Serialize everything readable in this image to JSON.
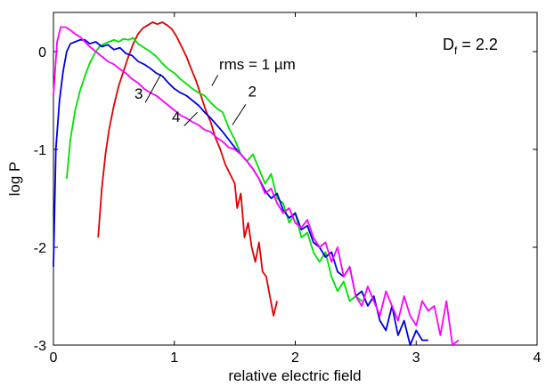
{
  "chart_data": {
    "type": "line",
    "xlabel": "relative electric field",
    "ylabel": "log P",
    "xlim": [
      0,
      4
    ],
    "ylim": [
      -3,
      0.4
    ],
    "xticks": [
      0,
      1,
      2,
      3,
      4
    ],
    "yticks": [
      -3,
      -2,
      -1,
      0
    ],
    "xtick_labels": [
      "0",
      "1",
      "2",
      "3",
      "4"
    ],
    "ytick_labels": [
      "-3",
      "-2",
      "-1",
      "0"
    ],
    "grid": false,
    "inset_text": {
      "main": "D",
      "sub": "f",
      "rest": " = 2.2"
    },
    "series": [
      {
        "name": "rms = 1 µm",
        "color": "#e00000",
        "x": [
          0.37,
          0.4,
          0.43,
          0.46,
          0.5,
          0.54,
          0.58,
          0.62,
          0.66,
          0.7,
          0.74,
          0.78,
          0.82,
          0.86,
          0.9,
          0.94,
          0.98,
          1.02,
          1.06,
          1.1,
          1.14,
          1.18,
          1.22,
          1.26,
          1.3,
          1.34,
          1.38,
          1.42,
          1.46,
          1.5,
          1.52,
          1.55,
          1.58,
          1.61,
          1.64,
          1.67,
          1.7,
          1.73,
          1.76,
          1.79,
          1.82,
          1.85
        ],
        "y": [
          -1.9,
          -1.4,
          -1.05,
          -0.8,
          -0.55,
          -0.35,
          -0.2,
          -0.05,
          0.08,
          0.18,
          0.24,
          0.27,
          0.3,
          0.28,
          0.3,
          0.27,
          0.23,
          0.15,
          0.05,
          -0.05,
          -0.18,
          -0.3,
          -0.45,
          -0.6,
          -0.72,
          -0.88,
          -1.0,
          -1.15,
          -1.25,
          -1.35,
          -1.6,
          -1.45,
          -1.9,
          -1.75,
          -2.0,
          -2.15,
          -1.95,
          -2.25,
          -2.3,
          -2.5,
          -2.7,
          -2.55
        ]
      },
      {
        "name": "2",
        "color": "#00e000",
        "x": [
          0.11,
          0.14,
          0.18,
          0.22,
          0.26,
          0.3,
          0.34,
          0.38,
          0.42,
          0.46,
          0.5,
          0.54,
          0.58,
          0.62,
          0.66,
          0.7,
          0.75,
          0.8,
          0.85,
          0.9,
          0.95,
          1.0,
          1.05,
          1.1,
          1.15,
          1.2,
          1.25,
          1.3,
          1.35,
          1.4,
          1.45,
          1.5,
          1.55,
          1.6,
          1.65,
          1.7,
          1.75,
          1.8,
          1.85,
          1.9,
          1.95,
          2.0,
          2.05,
          2.1,
          2.15,
          2.2,
          2.25,
          2.3,
          2.35,
          2.4,
          2.45,
          2.5,
          2.55
        ],
        "y": [
          -1.3,
          -0.9,
          -0.6,
          -0.4,
          -0.25,
          -0.12,
          -0.02,
          0.05,
          0.08,
          0.1,
          0.12,
          0.1,
          0.13,
          0.12,
          0.14,
          0.08,
          0.04,
          0.0,
          -0.05,
          -0.12,
          -0.18,
          -0.22,
          -0.28,
          -0.33,
          -0.38,
          -0.42,
          -0.45,
          -0.52,
          -0.58,
          -0.62,
          -0.78,
          -0.9,
          -1.05,
          -1.12,
          -1.05,
          -1.2,
          -1.35,
          -1.25,
          -1.5,
          -1.55,
          -1.75,
          -1.65,
          -1.9,
          -1.85,
          -2.05,
          -2.15,
          -2.05,
          -2.3,
          -2.45,
          -2.35,
          -2.55,
          -2.5,
          -2.55
        ]
      },
      {
        "name": "3",
        "color": "#0000e0",
        "x": [
          0.0,
          0.02,
          0.05,
          0.08,
          0.11,
          0.14,
          0.18,
          0.22,
          0.26,
          0.3,
          0.35,
          0.4,
          0.45,
          0.5,
          0.55,
          0.6,
          0.65,
          0.7,
          0.75,
          0.8,
          0.85,
          0.9,
          0.95,
          1.0,
          1.05,
          1.1,
          1.15,
          1.2,
          1.25,
          1.3,
          1.35,
          1.4,
          1.45,
          1.5,
          1.55,
          1.6,
          1.65,
          1.7,
          1.75,
          1.8,
          1.85,
          1.9,
          1.95,
          2.0,
          2.05,
          2.1,
          2.15,
          2.2,
          2.25,
          2.3,
          2.35,
          2.4,
          2.45,
          2.5,
          2.55,
          2.6,
          2.65,
          2.7,
          2.75,
          2.8,
          2.85,
          2.9,
          2.95,
          3.0,
          3.05,
          3.1
        ],
        "y": [
          -2.2,
          -1.0,
          -0.5,
          -0.2,
          0.0,
          0.08,
          0.1,
          0.12,
          0.12,
          0.08,
          0.1,
          0.05,
          0.07,
          0.02,
          0.04,
          -0.02,
          -0.04,
          -0.1,
          -0.13,
          -0.17,
          -0.22,
          -0.25,
          -0.32,
          -0.38,
          -0.42,
          -0.45,
          -0.5,
          -0.55,
          -0.62,
          -0.68,
          -0.75,
          -0.82,
          -0.9,
          -0.98,
          -1.05,
          -1.12,
          -1.2,
          -1.3,
          -1.42,
          -1.5,
          -1.45,
          -1.62,
          -1.7,
          -1.65,
          -1.82,
          -1.78,
          -1.95,
          -2.0,
          -2.1,
          -2.05,
          -2.25,
          -2.3,
          -2.2,
          -2.5,
          -2.45,
          -2.6,
          -2.5,
          -2.75,
          -2.85,
          -2.6,
          -2.9,
          -2.75,
          -3.0,
          -2.85,
          -2.95,
          -2.95
        ]
      },
      {
        "name": "4",
        "color": "#ff00ff",
        "x": [
          0.0,
          0.03,
          0.06,
          0.1,
          0.14,
          0.18,
          0.22,
          0.26,
          0.3,
          0.35,
          0.4,
          0.45,
          0.5,
          0.55,
          0.6,
          0.65,
          0.7,
          0.75,
          0.8,
          0.85,
          0.9,
          0.95,
          1.0,
          1.05,
          1.1,
          1.15,
          1.2,
          1.25,
          1.3,
          1.35,
          1.4,
          1.45,
          1.5,
          1.55,
          1.6,
          1.65,
          1.7,
          1.75,
          1.8,
          1.85,
          1.9,
          1.95,
          2.0,
          2.05,
          2.1,
          2.15,
          2.2,
          2.25,
          2.3,
          2.35,
          2.4,
          2.45,
          2.5,
          2.55,
          2.6,
          2.65,
          2.7,
          2.75,
          2.8,
          2.85,
          2.9,
          2.95,
          3.0,
          3.05,
          3.1,
          3.15,
          3.2,
          3.25,
          3.3,
          3.35
        ],
        "y": [
          -0.45,
          0.1,
          0.25,
          0.25,
          0.22,
          0.18,
          0.15,
          0.1,
          0.05,
          0.0,
          -0.05,
          -0.1,
          -0.13,
          -0.18,
          -0.22,
          -0.28,
          -0.32,
          -0.38,
          -0.42,
          -0.45,
          -0.5,
          -0.55,
          -0.6,
          -0.65,
          -0.68,
          -0.72,
          -0.75,
          -0.8,
          -0.82,
          -0.88,
          -0.92,
          -0.98,
          -1.0,
          -1.05,
          -1.12,
          -1.2,
          -1.3,
          -1.45,
          -1.4,
          -1.55,
          -1.65,
          -1.6,
          -1.75,
          -1.8,
          -1.72,
          -1.9,
          -2.0,
          -1.95,
          -2.15,
          -2.0,
          -2.3,
          -2.2,
          -2.5,
          -2.6,
          -2.4,
          -2.55,
          -2.7,
          -2.45,
          -2.6,
          -2.75,
          -2.5,
          -2.7,
          -2.8,
          -2.55,
          -2.65,
          -2.6,
          -2.9,
          -2.55,
          -3.0,
          -2.95
        ]
      }
    ],
    "annotations": [
      {
        "text": "rms = 1 µm",
        "series": "rms = 1 µm"
      },
      {
        "text": "2",
        "series": "2"
      },
      {
        "text": "3",
        "series": "3"
      },
      {
        "text": "4",
        "series": "4"
      }
    ]
  }
}
